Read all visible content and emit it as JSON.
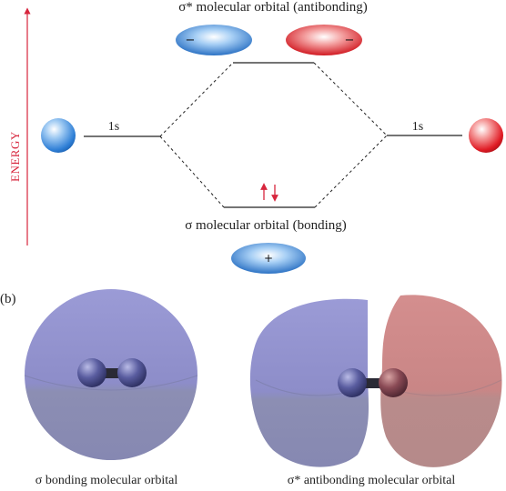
{
  "energy_axis": {
    "label": "ENERGY",
    "color": "#d7263d"
  },
  "top_diagram": {
    "antibonding_label": "σ* molecular orbital (antibonding)",
    "bonding_label": "σ molecular orbital (bonding)",
    "left_orbital_label": "1s",
    "right_orbital_label": "1s",
    "antibonding_left_sign": "−",
    "antibonding_right_sign": "−",
    "bonding_sign": "+",
    "electron_arrows": [
      "up-arrow-icon",
      "down-arrow-icon"
    ]
  },
  "panel_b": {
    "label": "(b)",
    "bonding_caption": "σ bonding molecular orbital",
    "antibonding_caption": "σ* antibonding molecular orbital"
  },
  "colors": {
    "blue_atom": "#2f7fd6",
    "red_atom": "#e01b24",
    "lobe_blue": "#8f8fc9",
    "lobe_red": "#c98b8b",
    "nucleus": "#4a4d8a"
  }
}
